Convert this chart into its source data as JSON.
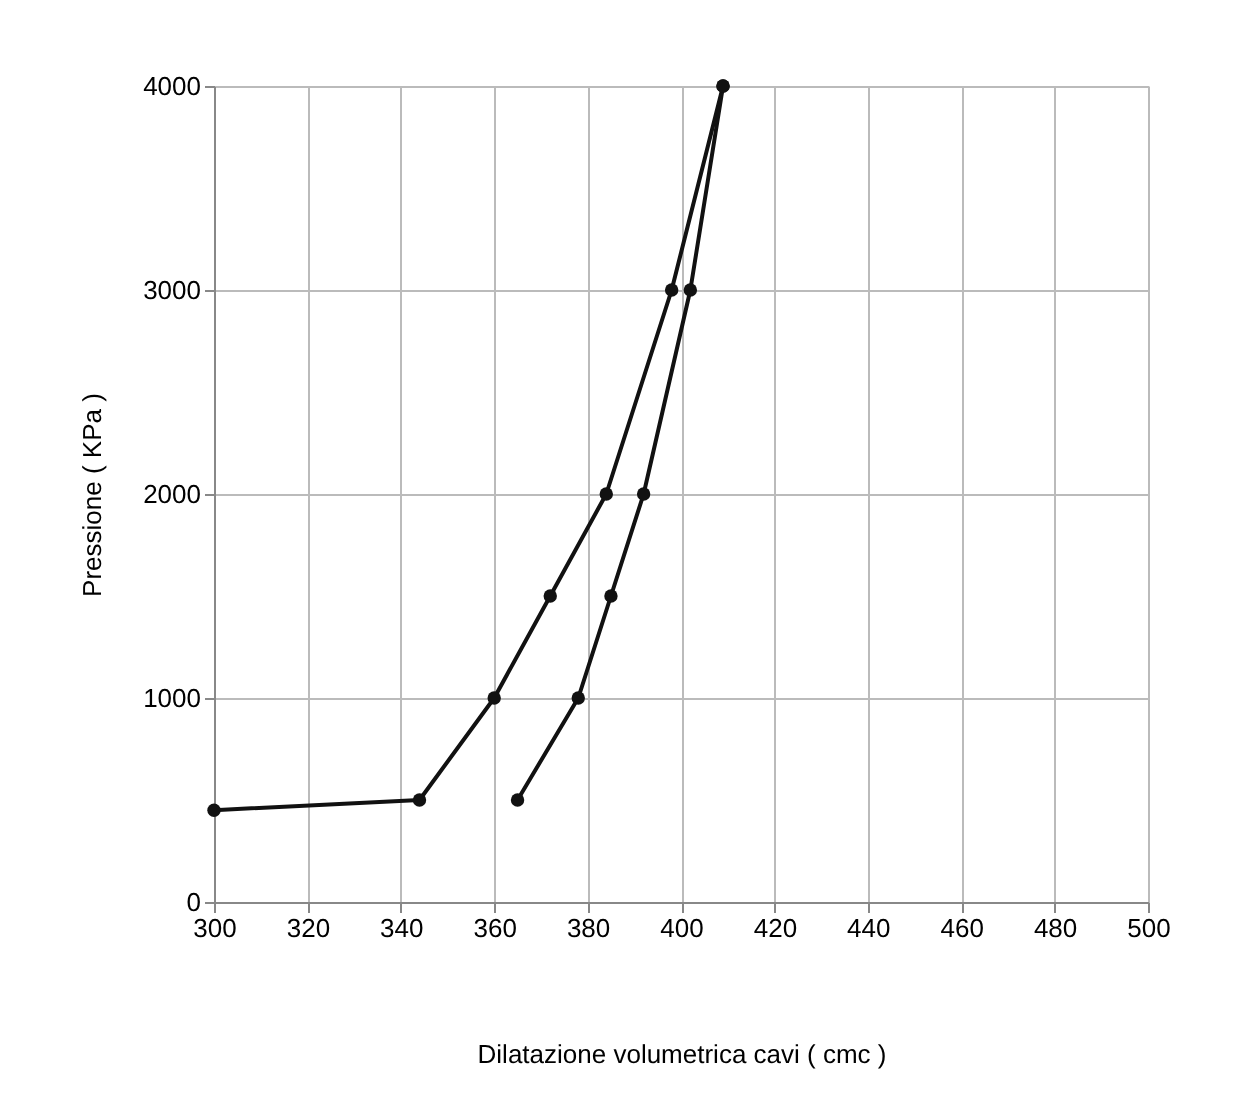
{
  "chart_data": {
    "type": "line",
    "xlabel": "Dilatazione volumetrica cavi ( cmc )",
    "ylabel": "Pressione ( KPa )",
    "series": [
      {
        "color": "#111111",
        "x": [
          300,
          344,
          360,
          372,
          384,
          398,
          409
        ],
        "values": [
          450,
          500,
          1000,
          1500,
          2000,
          3000,
          4000
        ]
      },
      {
        "color": "#111111",
        "x": [
          365,
          378,
          385,
          392,
          402,
          409
        ],
        "values": [
          500,
          1000,
          1500,
          2000,
          3000,
          4000
        ]
      }
    ],
    "xlim": [
      300,
      500
    ],
    "xticks": [
      300,
      320,
      340,
      360,
      380,
      400,
      420,
      440,
      460,
      480,
      500
    ],
    "ylim": [
      0,
      4000
    ],
    "yticks": [
      0,
      1000,
      2000,
      3000,
      4000
    ],
    "grid": true,
    "marker": "circle",
    "line_style": "solid",
    "legend": false
  }
}
